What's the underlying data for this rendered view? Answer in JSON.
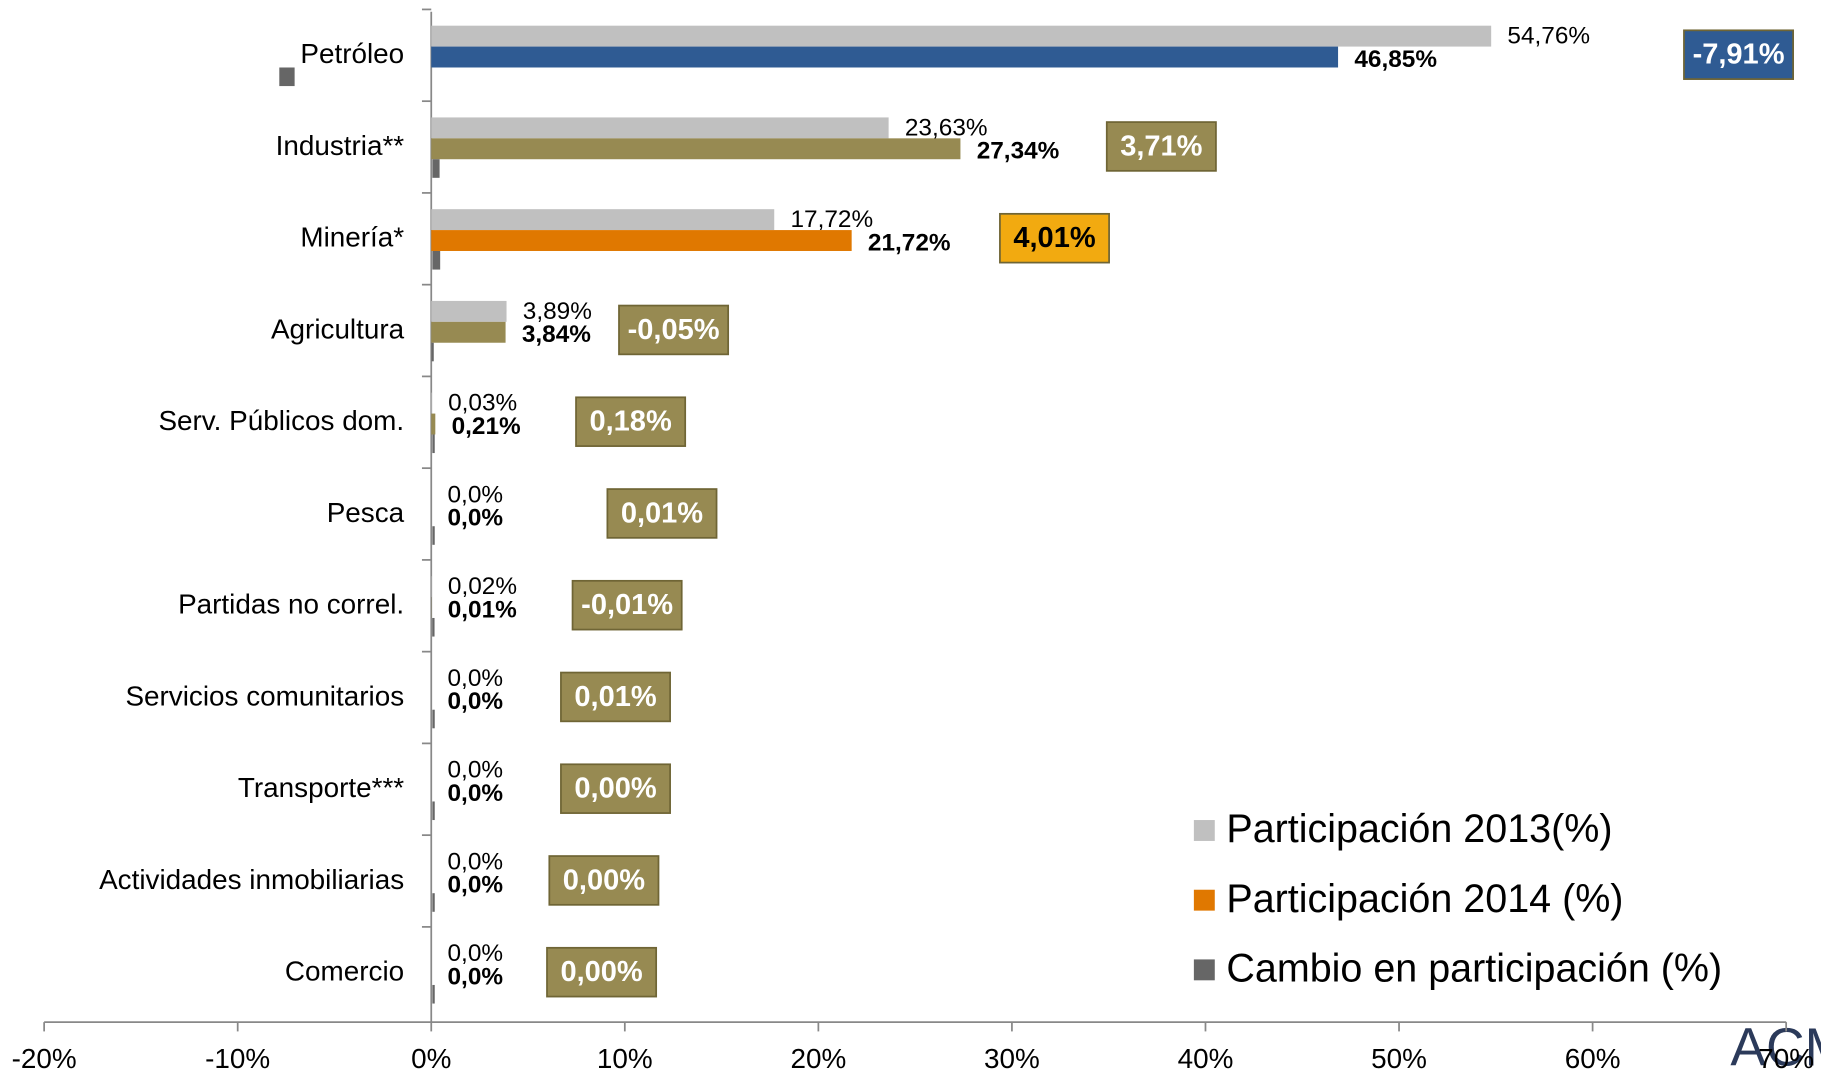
{
  "chart_data": {
    "type": "bar",
    "orientation": "horizontal",
    "categories": [
      "Petróleo",
      "Industria**",
      "Minería*",
      "Agricultura",
      "Serv. Públicos dom.",
      "Pesca",
      "Partidas no correl.",
      "Servicios comunitarios",
      "Transporte***",
      "Actividades inmobiliarias",
      "Comercio"
    ],
    "series": [
      {
        "name": "Participación 2013(%)",
        "color": "#c0c0c0",
        "values": [
          54.76,
          23.63,
          17.72,
          3.89,
          0.03,
          0,
          0.02,
          0,
          0,
          0,
          0
        ],
        "value_labels": [
          "54,76%",
          "23,63%",
          "17,72%",
          "3,89%",
          "0,03%",
          "0,0%",
          "0,02%",
          "0,0%",
          "0,0%",
          "0,0%",
          "0,0%"
        ]
      },
      {
        "name": "Participación 2014 (%)",
        "color": "#978a52",
        "colors": [
          "#2f5b93",
          "#978a52",
          "#e07800",
          "#978a52",
          "#978a52",
          "#978a52",
          "#978a52",
          "#978a52",
          "#978a52",
          "#978a52",
          "#978a52"
        ],
        "values": [
          46.85,
          27.34,
          21.72,
          3.84,
          0.21,
          0,
          0.01,
          0,
          0,
          0,
          0
        ],
        "value_labels": [
          "46,85%",
          "27,34%",
          "21,72%",
          "3,84%",
          "0,21%",
          "0,0%",
          "0,01%",
          "0,0%",
          "0,0%",
          "0,0%",
          "0,0%"
        ]
      },
      {
        "name": "Cambio en participación (%)",
        "color": "#666666",
        "colors": [
          "#2f5b93",
          "#978a52",
          "#f2aa10",
          "#978a52",
          "#978a52",
          "#978a52",
          "#978a52",
          "#978a52",
          "#978a52",
          "#978a52",
          "#978a52"
        ],
        "values": [
          -7.91,
          3.71,
          4.01,
          -0.05,
          0.18,
          0.01,
          -0.01,
          0.01,
          0,
          0,
          0
        ],
        "value_labels": [
          "-7,91%",
          "3,71%",
          "4,01%",
          "-0,05%",
          "0,18%",
          "0,01%",
          "-0,01%",
          "0,01%",
          "0,00%",
          "0,00%",
          "0,00%"
        ]
      }
    ],
    "xlim": [
      -20,
      70
    ],
    "xticks": [
      {
        "value": -20,
        "label": "-20%"
      },
      {
        "value": -10,
        "label": "-10%"
      },
      {
        "value": 0,
        "label": "0%"
      },
      {
        "value": 10,
        "label": "10%"
      },
      {
        "value": 20,
        "label": "20%"
      },
      {
        "value": 30,
        "label": "30%"
      },
      {
        "value": 40,
        "label": "40%"
      },
      {
        "value": 50,
        "label": "50%"
      },
      {
        "value": 60,
        "label": "60%"
      },
      {
        "value": 70,
        "label": "70%"
      }
    ],
    "legend": "bottom-right",
    "grid": false,
    "logo_text": "ACM"
  }
}
